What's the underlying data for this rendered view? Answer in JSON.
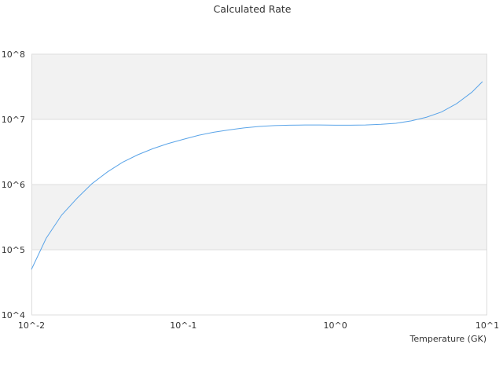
{
  "chart_data": {
    "type": "line",
    "title": "Calculated Rate",
    "xlabel": "Temperature (GK)",
    "ylabel": "",
    "x_scale": "log",
    "y_scale": "log",
    "xlim": [
      0.01,
      10
    ],
    "ylim": [
      10000,
      100000000
    ],
    "x_ticks": [
      0.01,
      0.1,
      1,
      10
    ],
    "x_tick_labels": [
      "10^-2",
      "10^-1",
      "10^0",
      "10^1"
    ],
    "y_ticks": [
      10000,
      100000,
      1000000,
      10000000,
      100000000
    ],
    "y_tick_labels": [
      "10^4",
      "10^5",
      "10^6",
      "10^7",
      "10^8"
    ],
    "grid": true,
    "alternating_bands": true,
    "band_color": "#f2f2f2",
    "line_color": "#5aa4e8",
    "series": [
      {
        "x": [
          0.01,
          0.0125,
          0.0158,
          0.02,
          0.025,
          0.0316,
          0.0398,
          0.05,
          0.063,
          0.079,
          0.1,
          0.126,
          0.158,
          0.2,
          0.25,
          0.316,
          0.398,
          0.5,
          0.63,
          0.79,
          1.0,
          1.26,
          1.58,
          2.0,
          2.5,
          3.16,
          3.98,
          5.0,
          6.3,
          7.9,
          9.3
        ],
        "y": [
          50000,
          150000,
          340000,
          620000,
          1030000,
          1560000,
          2200000,
          2860000,
          3560000,
          4250000,
          4950000,
          5700000,
          6350000,
          6900000,
          7400000,
          7800000,
          8050000,
          8150000,
          8200000,
          8200000,
          8150000,
          8150000,
          8200000,
          8400000,
          8700000,
          9500000,
          10800000,
          13000000,
          17500000,
          26000000,
          38000000
        ]
      }
    ]
  }
}
